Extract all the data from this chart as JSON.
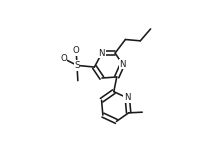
{
  "bg_color": "#ffffff",
  "line_color": "#1a1a1a",
  "line_width": 1.15,
  "font_size": 6.2,
  "fig_width": 2.02,
  "fig_height": 1.66,
  "dpi": 100,
  "xlim": [
    0.0,
    1.0
  ],
  "ylim": [
    0.0,
    1.0
  ]
}
